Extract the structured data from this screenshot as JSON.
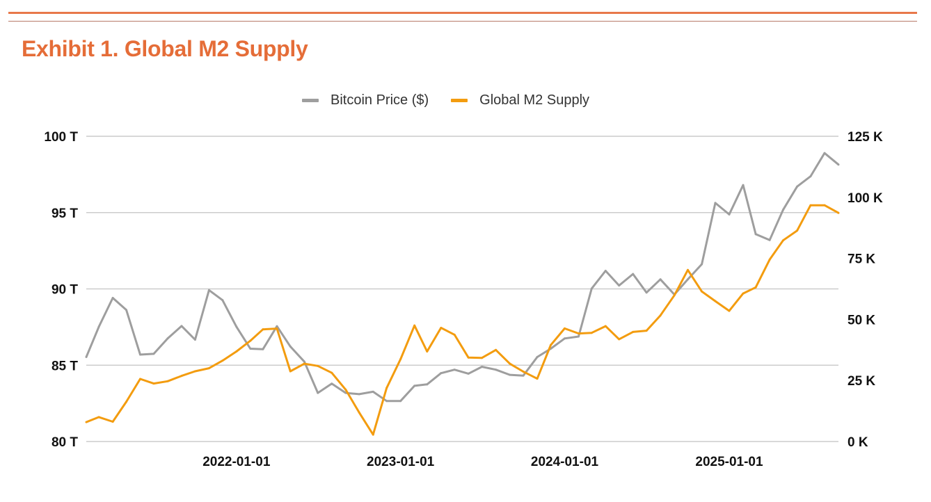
{
  "header": {
    "title": "Exhibit 1. Global M2 Supply"
  },
  "chart_data": {
    "type": "line",
    "title": "Exhibit 1. Global M2 Supply",
    "legend_position": "top",
    "grid": true,
    "x": [
      "2021-02-01",
      "2021-03-01",
      "2021-04-01",
      "2021-05-01",
      "2021-06-01",
      "2021-07-01",
      "2021-08-01",
      "2021-09-01",
      "2021-10-01",
      "2021-11-01",
      "2021-12-01",
      "2022-01-01",
      "2022-02-01",
      "2022-03-01",
      "2022-04-01",
      "2022-05-01",
      "2022-06-01",
      "2022-07-01",
      "2022-08-01",
      "2022-09-01",
      "2022-10-01",
      "2022-11-01",
      "2022-12-01",
      "2023-01-01",
      "2023-02-01",
      "2023-03-01",
      "2023-04-01",
      "2023-05-01",
      "2023-06-01",
      "2023-07-01",
      "2023-08-01",
      "2023-09-01",
      "2023-10-01",
      "2023-11-01",
      "2023-12-01",
      "2024-01-01",
      "2024-02-01",
      "2024-03-01",
      "2024-04-01",
      "2024-05-01",
      "2024-06-01",
      "2024-07-01",
      "2024-08-01",
      "2024-09-01",
      "2024-10-01",
      "2024-11-01",
      "2024-12-01",
      "2025-01-01",
      "2025-02-01",
      "2025-03-01",
      "2025-04-01",
      "2025-05-01",
      "2025-06-01",
      "2025-07-01",
      "2025-08-01",
      "2025-09-01"
    ],
    "x_tick_labels": [
      "2022-01-01",
      "2023-01-01",
      "2024-01-01",
      "2025-01-01"
    ],
    "left_axis": {
      "label": "",
      "range": [
        80,
        100
      ],
      "unit": "T",
      "tick_labels": [
        "80 T",
        "85 T",
        "90 T",
        "95 T",
        "100 T"
      ],
      "ticks": [
        80,
        85,
        90,
        95,
        100
      ]
    },
    "right_axis": {
      "label": "",
      "range": [
        0,
        125
      ],
      "unit": "K",
      "tick_labels": [
        "0 K",
        "25 K",
        "50 K",
        "75 K",
        "100 K",
        "125 K"
      ],
      "ticks": [
        0,
        25,
        50,
        75,
        100,
        125
      ]
    },
    "series": [
      {
        "name": "Bitcoin Price ($)",
        "axis": "right",
        "color": "#9e9e9e",
        "values": [
          34.6,
          47,
          58.8,
          53.9,
          35.6,
          35.9,
          42.2,
          47.3,
          41.7,
          62,
          57.9,
          47,
          38,
          37.8,
          47.2,
          38.9,
          32.7,
          19.9,
          23.7,
          19.9,
          19.4,
          20.4,
          16.6,
          16.6,
          22.8,
          23.4,
          28,
          29.4,
          27.8,
          30.6,
          29.4,
          27.3,
          27.0,
          34.6,
          38.0,
          42.2,
          43.0,
          62.6,
          69.9,
          63.9,
          68.6,
          61.0,
          66.4,
          60.2,
          66.4,
          72.6,
          97.7,
          93.0,
          105.0,
          84.9,
          82.5,
          94.9,
          104.4,
          108.6,
          118.1,
          113.4
        ]
      },
      {
        "name": "Global M2 Supply",
        "axis": "left",
        "color": "#f39c0f",
        "values": [
          81.27,
          81.6,
          81.3,
          82.6,
          84.1,
          83.8,
          83.95,
          84.3,
          84.6,
          84.8,
          85.3,
          85.9,
          86.6,
          87.35,
          87.4,
          84.6,
          85.1,
          84.95,
          84.5,
          83.4,
          81.9,
          80.45,
          83.5,
          85.4,
          87.6,
          85.9,
          87.45,
          87.0,
          85.5,
          85.48,
          86.0,
          85.1,
          84.58,
          84.12,
          86.32,
          87.41,
          87.08,
          87.12,
          87.56,
          86.7,
          87.18,
          87.26,
          88.26,
          89.58,
          91.24,
          89.83,
          89.2,
          88.56,
          89.7,
          90.1,
          91.92,
          93.18,
          93.82,
          95.48,
          95.48,
          94.98
        ]
      }
    ]
  },
  "colors": {
    "title": "#e56d38",
    "rule": "#e8784a",
    "grid": "#cccccc"
  }
}
